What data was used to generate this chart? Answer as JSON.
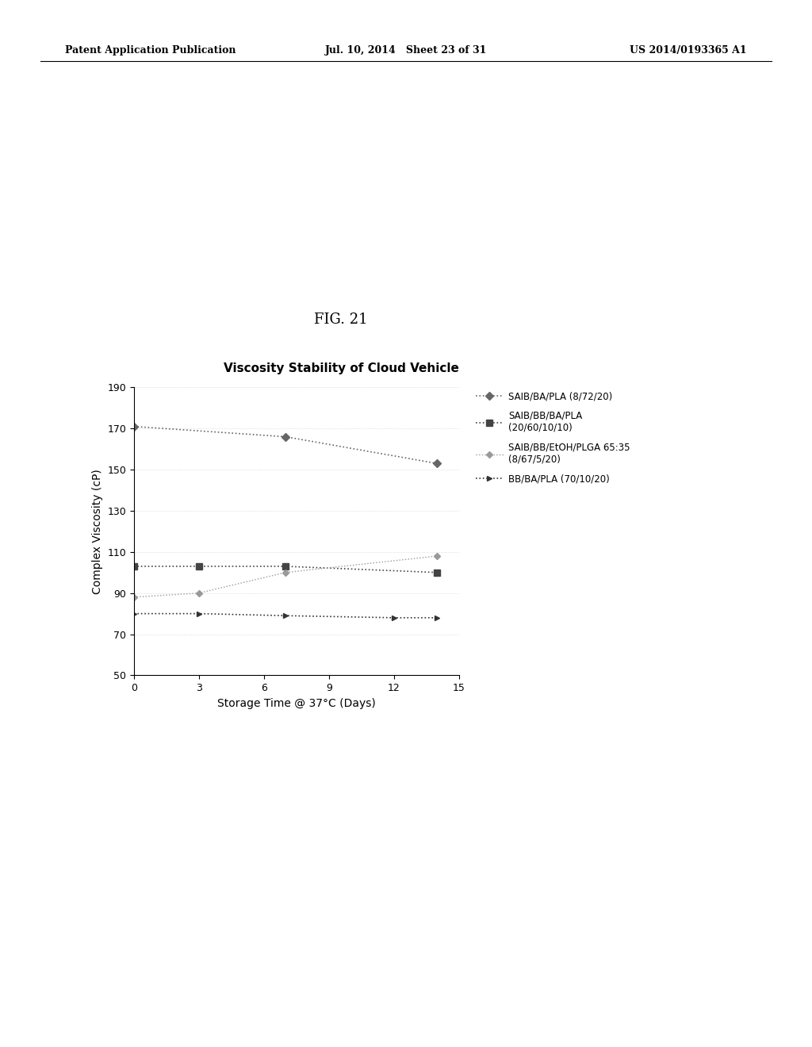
{
  "title": "Viscosity Stability of Cloud Vehicle",
  "fig_label": "FIG. 21",
  "xlabel": "Storage Time @ 37°C (Days)",
  "ylabel": "Complex Viscosity (cP)",
  "xlim": [
    0,
    15
  ],
  "ylim": [
    50,
    190
  ],
  "yticks": [
    50,
    70,
    90,
    110,
    130,
    150,
    170,
    190
  ],
  "xticks": [
    0,
    3,
    6,
    9,
    12,
    15
  ],
  "series": [
    {
      "label": "SAIB/BA/PLA (8/72/20)",
      "x": [
        0,
        7,
        14
      ],
      "y": [
        171,
        166,
        153
      ],
      "color": "#666666",
      "linestyle": "dotted",
      "marker": "D",
      "markersize": 5,
      "linewidth": 1.2
    },
    {
      "label": "SAIB/BB/BA/PLA\n(20/60/10/10)",
      "x": [
        0,
        3,
        7,
        14
      ],
      "y": [
        103,
        103,
        103,
        100
      ],
      "color": "#444444",
      "linestyle": "dotted",
      "marker": "s",
      "markersize": 6,
      "linewidth": 1.2
    },
    {
      "label": "SAIB/BB/EtOH/PLGA 65:35\n(8/67/5/20)",
      "x": [
        0,
        3,
        7,
        14
      ],
      "y": [
        88,
        90,
        100,
        108
      ],
      "color": "#999999",
      "linestyle": "dotted",
      "marker": "D",
      "markersize": 4,
      "linewidth": 1.0
    },
    {
      "label": "BB/BA/PLA (70/10/20)",
      "x": [
        0,
        3,
        7,
        12,
        14
      ],
      "y": [
        80,
        80,
        79,
        78,
        78
      ],
      "color": "#333333",
      "linestyle": "dotted",
      "marker": ">",
      "markersize": 5,
      "linewidth": 1.2
    }
  ],
  "background_color": "#ffffff",
  "title_fontsize": 11,
  "axis_fontsize": 10,
  "tick_fontsize": 9,
  "legend_fontsize": 8.5,
  "patent_header_left": "Patent Application Publication",
  "patent_header_mid": "Jul. 10, 2014   Sheet 23 of 31",
  "patent_header_right": "US 2014/0193365 A1"
}
